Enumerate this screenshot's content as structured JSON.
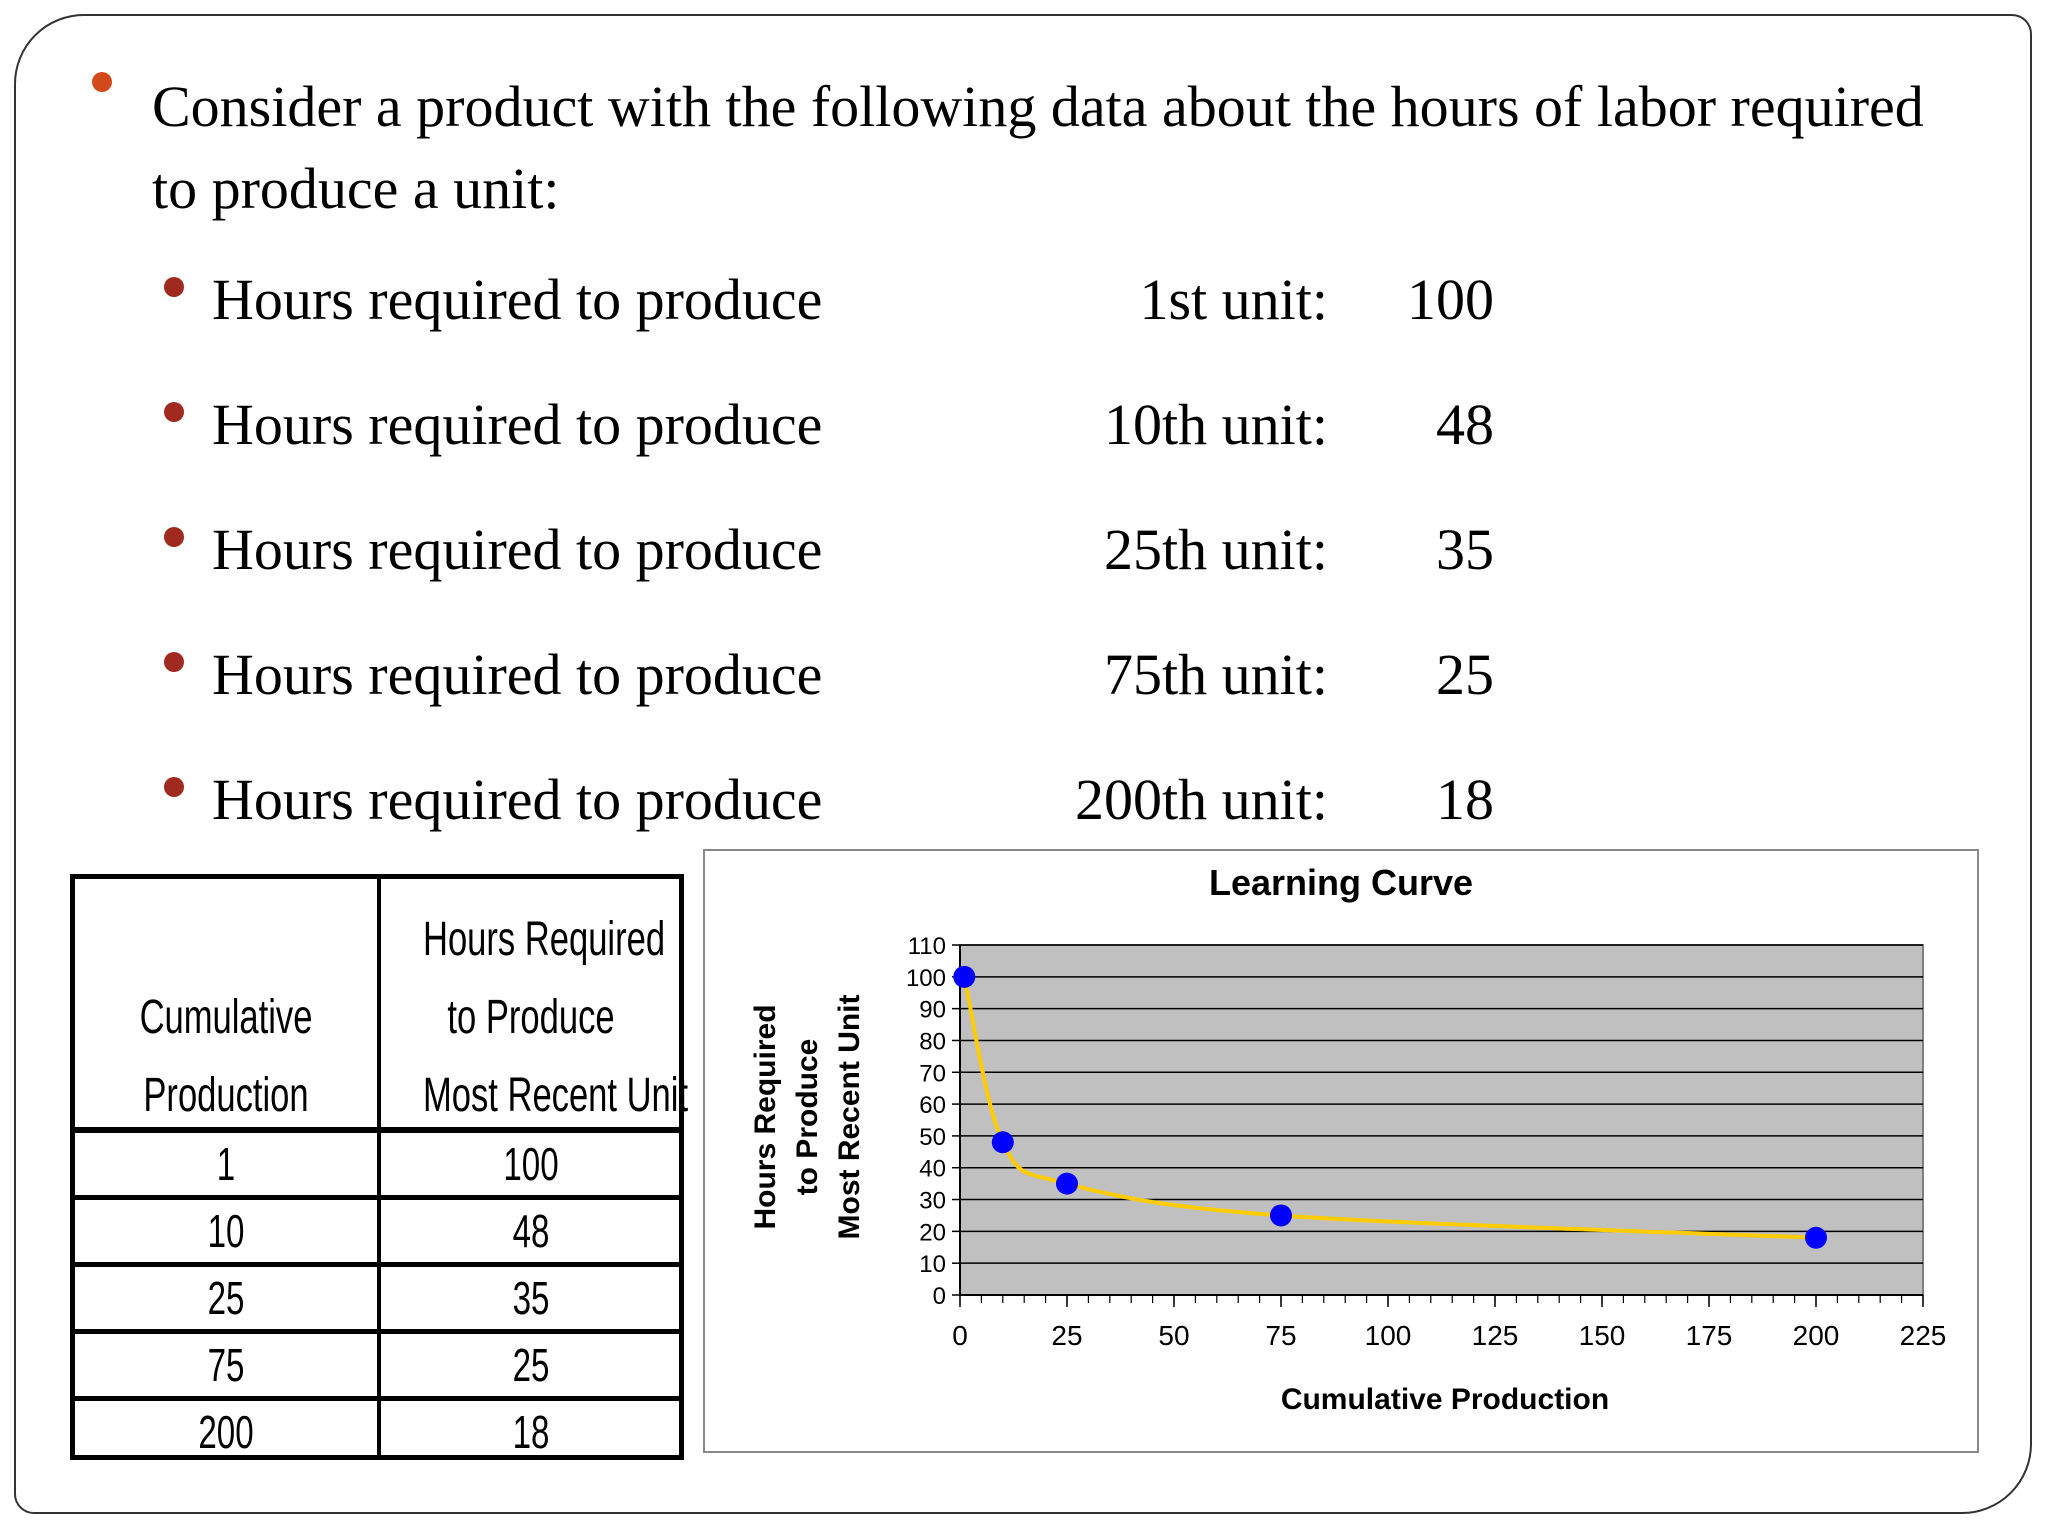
{
  "main_bullet": "Consider a product with the following data about the hours of labor required to produce a unit:",
  "sub_items": [
    {
      "label": "Hours required to produce",
      "unit": "1st unit:",
      "value": "100"
    },
    {
      "label": "Hours required to produce",
      "unit": "10th unit:",
      "value": "48"
    },
    {
      "label": "Hours required to produce",
      "unit": "25th unit:",
      "value": "35"
    },
    {
      "label": "Hours required to produce",
      "unit": "75th unit:",
      "value": "25"
    },
    {
      "label": "Hours required to produce",
      "unit": "200th unit:",
      "value": "18"
    }
  ],
  "table": {
    "header_col1": [
      "Cumulative",
      "Production"
    ],
    "header_col2": [
      "Hours Required",
      "to Produce",
      "Most Recent Unit"
    ],
    "rows": [
      [
        "1",
        "100"
      ],
      [
        "10",
        "48"
      ],
      [
        "25",
        "35"
      ],
      [
        "75",
        "25"
      ],
      [
        "200",
        "18"
      ]
    ]
  },
  "colors": {
    "plot_bg": "#c0c0c0",
    "curve": "#ffcc00",
    "points": "#0000ff",
    "main_bullet": "#d24a1b",
    "sub_bullet": "#a02a1f"
  },
  "chart_data": {
    "type": "scatter",
    "title": "Learning Curve",
    "xlabel": "Cumulative Production",
    "ylabel": [
      "Hours Required",
      "to Produce",
      "Most Recent Unit"
    ],
    "x": [
      1,
      10,
      25,
      75,
      200
    ],
    "y": [
      100,
      48,
      35,
      25,
      18
    ],
    "curve": "smoothed line",
    "xlim": [
      0,
      225
    ],
    "ylim": [
      0,
      110
    ],
    "x_ticks": [
      0,
      25,
      50,
      75,
      100,
      125,
      150,
      175,
      200,
      225
    ],
    "y_ticks": [
      0,
      10,
      20,
      30,
      40,
      50,
      60,
      70,
      80,
      90,
      100,
      110
    ],
    "grid": "horizontal"
  }
}
